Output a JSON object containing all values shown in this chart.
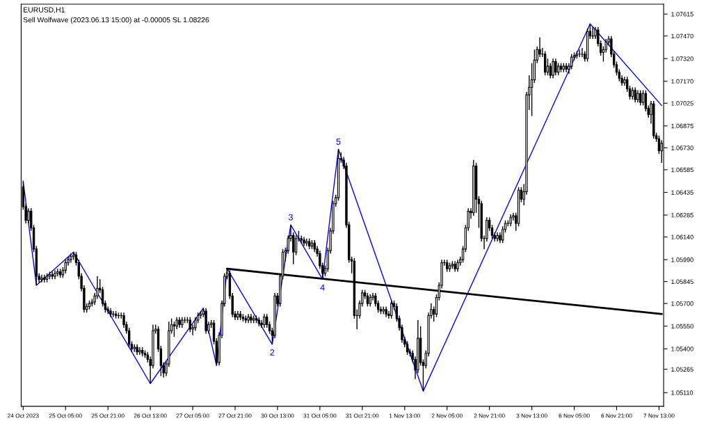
{
  "chart_data": {
    "type": "candlestick",
    "title": "EURUSD,H1",
    "subtitle": "Sell Wolfwave (2023.06.13 15:00) at -0.00005 SL 1.08226",
    "categories": [
      "24 Oct 2023",
      null,
      null,
      null,
      null,
      null,
      null,
      null,
      null,
      null,
      null,
      null,
      null,
      null,
      null,
      null,
      "25 Oct 05:00",
      null,
      null,
      null,
      null,
      null,
      null,
      null,
      null,
      null,
      null,
      null,
      null,
      null,
      null,
      null,
      "25 Oct 21:00",
      null,
      null,
      null,
      null,
      null,
      null,
      null,
      null,
      null,
      null,
      null,
      null,
      null,
      null,
      null,
      "26 Oct 13:00",
      null,
      null,
      null,
      null,
      null,
      null,
      null,
      null,
      null,
      null,
      null,
      null,
      null,
      null,
      null,
      "27 Oct 05:00",
      null,
      null,
      null,
      null,
      null,
      null,
      null,
      null,
      null,
      null,
      null,
      null,
      null,
      null,
      null,
      "27 Oct 21:00",
      null,
      null,
      null,
      null,
      null,
      null,
      null,
      null,
      null,
      null,
      null,
      null,
      null,
      null,
      null,
      "30 Oct 13:00",
      null,
      null,
      null,
      null,
      null,
      null,
      null,
      null,
      null,
      null,
      null,
      null,
      null,
      null,
      null,
      "31 Oct 05:00",
      null,
      null,
      null,
      null,
      null,
      null,
      null,
      null,
      null,
      null,
      null,
      null,
      null,
      null,
      null,
      "31 Oct 21:00",
      null,
      null,
      null,
      null,
      null,
      null,
      null,
      null,
      null,
      null,
      null,
      null,
      null,
      null,
      null,
      "1 Nov 13:00",
      null,
      null,
      null,
      null,
      null,
      null,
      null,
      null,
      null,
      null,
      null,
      null,
      null,
      null,
      null,
      "2 Nov 05:00",
      null,
      null,
      null,
      null,
      null,
      null,
      null,
      null,
      null,
      null,
      null,
      null,
      null,
      null,
      null,
      "2 Nov 21:00",
      null,
      null,
      null,
      null,
      null,
      null,
      null,
      null,
      null,
      null,
      null,
      null,
      null,
      null,
      null,
      "3 Nov 13:00",
      null,
      null,
      null,
      null,
      null,
      null,
      null,
      null,
      null,
      null,
      null,
      null,
      null,
      null,
      null,
      "6 Nov 05:00",
      null,
      null,
      null,
      null,
      null,
      null,
      null,
      null,
      null,
      null,
      null,
      null,
      null,
      null,
      null,
      "6 Nov 21:00",
      null,
      null,
      null,
      null,
      null,
      null,
      null,
      null,
      null,
      null,
      null,
      null,
      null,
      null,
      null,
      "7 Nov 13:00",
      null
    ],
    "ohlc": [
      [
        1.0647,
        1.0651,
        1.0632,
        1.0634
      ],
      [
        1.0634,
        1.0636,
        1.0623,
        1.0625
      ],
      [
        1.0625,
        1.0633,
        1.0623,
        1.0631
      ],
      [
        1.0631,
        1.0633,
        1.0618,
        1.062
      ],
      [
        1.062,
        1.0622,
        1.0604,
        1.0606
      ],
      [
        1.0606,
        1.0608,
        1.0582,
        1.0588
      ],
      [
        1.0588,
        1.059,
        1.0584,
        1.0586
      ],
      [
        1.0586,
        1.0589,
        1.0584,
        1.0587
      ],
      [
        1.0587,
        1.0589,
        1.0584,
        1.0586
      ],
      [
        1.0586,
        1.059,
        1.0584,
        1.0588
      ],
      [
        1.0588,
        1.0591,
        1.0586,
        1.0589
      ],
      [
        1.0589,
        1.0591,
        1.0586,
        1.0588
      ],
      [
        1.0588,
        1.0592,
        1.0586,
        1.059
      ],
      [
        1.059,
        1.0593,
        1.0588,
        1.0591
      ],
      [
        1.0591,
        1.0593,
        1.0587,
        1.0589
      ],
      [
        1.0589,
        1.0594,
        1.0587,
        1.0592
      ],
      [
        1.0592,
        1.0599,
        1.059,
        1.0597
      ],
      [
        1.0597,
        1.0601,
        1.0595,
        1.0599
      ],
      [
        1.0599,
        1.0603,
        1.0597,
        1.0601
      ],
      [
        1.0601,
        1.0604,
        1.0599,
        1.0602
      ],
      [
        1.0602,
        1.0604,
        1.0595,
        1.0597
      ],
      [
        1.0597,
        1.0599,
        1.0586,
        1.0588
      ],
      [
        1.0588,
        1.059,
        1.0578,
        1.058
      ],
      [
        1.058,
        1.0582,
        1.0564,
        1.0566
      ],
      [
        1.0566,
        1.057,
        1.0564,
        1.0568
      ],
      [
        1.0568,
        1.0572,
        1.0566,
        1.057
      ],
      [
        1.057,
        1.0573,
        1.0568,
        1.0571
      ],
      [
        1.0571,
        1.0577,
        1.0569,
        1.0575
      ],
      [
        1.0575,
        1.0588,
        1.0573,
        1.058
      ],
      [
        1.058,
        1.0586,
        1.0577,
        1.0579
      ],
      [
        1.0579,
        1.0581,
        1.0568,
        1.057
      ],
      [
        1.057,
        1.0572,
        1.0564,
        1.0566
      ],
      [
        1.0566,
        1.0568,
        1.0563,
        1.0565
      ],
      [
        1.0565,
        1.0567,
        1.0561,
        1.0563
      ],
      [
        1.0563,
        1.0565,
        1.0561,
        1.0563
      ],
      [
        1.0563,
        1.0565,
        1.056,
        1.0562
      ],
      [
        1.0562,
        1.0564,
        1.056,
        1.0562
      ],
      [
        1.0562,
        1.0564,
        1.056,
        1.0562
      ],
      [
        1.0562,
        1.0564,
        1.0554,
        1.0556
      ],
      [
        1.0556,
        1.0558,
        1.055,
        1.0552
      ],
      [
        1.0552,
        1.0554,
        1.0541,
        1.0543
      ],
      [
        1.0543,
        1.0545,
        1.0538,
        1.054
      ],
      [
        1.054,
        1.0543,
        1.0538,
        1.0541
      ],
      [
        1.0541,
        1.0543,
        1.0536,
        1.0538
      ],
      [
        1.0538,
        1.0541,
        1.0536,
        1.0539
      ],
      [
        1.0539,
        1.0541,
        1.0535,
        1.0537
      ],
      [
        1.0537,
        1.0539,
        1.0534,
        1.0536
      ],
      [
        1.0536,
        1.0538,
        1.0531,
        1.0533
      ],
      [
        1.0533,
        1.0535,
        1.0517,
        1.0529
      ],
      [
        1.0529,
        1.0556,
        1.0527,
        1.0552
      ],
      [
        1.0552,
        1.0556,
        1.055,
        1.0553
      ],
      [
        1.0553,
        1.0555,
        1.0538,
        1.054
      ],
      [
        1.054,
        1.0542,
        1.0522,
        1.0529
      ],
      [
        1.0529,
        1.0531,
        1.0521,
        1.0524
      ],
      [
        1.0524,
        1.0532,
        1.0522,
        1.053
      ],
      [
        1.053,
        1.0558,
        1.0528,
        1.0552
      ],
      [
        1.0552,
        1.056,
        1.055,
        1.0556
      ],
      [
        1.0556,
        1.0558,
        1.0548,
        1.0555
      ],
      [
        1.0555,
        1.0561,
        1.0553,
        1.0559
      ],
      [
        1.0559,
        1.0561,
        1.0554,
        1.0556
      ],
      [
        1.0556,
        1.0561,
        1.0554,
        1.0559
      ],
      [
        1.0559,
        1.0561,
        1.0557,
        1.0559
      ],
      [
        1.0559,
        1.0561,
        1.0557,
        1.0559
      ],
      [
        1.0559,
        1.0561,
        1.0551,
        1.0553
      ],
      [
        1.0553,
        1.0556,
        1.0549,
        1.0554
      ],
      [
        1.0554,
        1.0561,
        1.0552,
        1.0559
      ],
      [
        1.0559,
        1.0564,
        1.0557,
        1.0562
      ],
      [
        1.0562,
        1.0565,
        1.056,
        1.0563
      ],
      [
        1.0563,
        1.0567,
        1.0561,
        1.0565
      ],
      [
        1.0565,
        1.0567,
        1.055,
        1.0552
      ],
      [
        1.0552,
        1.0558,
        1.055,
        1.0556
      ],
      [
        1.0556,
        1.0559,
        1.0554,
        1.0557
      ],
      [
        1.0557,
        1.0559,
        1.0543,
        1.0545
      ],
      [
        1.0545,
        1.0547,
        1.0529,
        1.0531
      ],
      [
        1.0531,
        1.0551,
        1.0529,
        1.0549
      ],
      [
        1.0549,
        1.0572,
        1.0547,
        1.057
      ],
      [
        1.057,
        1.059,
        1.0568,
        1.0588
      ],
      [
        1.0588,
        1.0593,
        1.0586,
        1.059
      ],
      [
        1.059,
        1.0592,
        1.0573,
        1.0575
      ],
      [
        1.0575,
        1.0577,
        1.0561,
        1.0563
      ],
      [
        1.0563,
        1.0565,
        1.0559,
        1.0561
      ],
      [
        1.0561,
        1.0565,
        1.0559,
        1.0563
      ],
      [
        1.0563,
        1.0565,
        1.0559,
        1.0561
      ],
      [
        1.0561,
        1.0563,
        1.0558,
        1.056
      ],
      [
        1.056,
        1.0562,
        1.0557,
        1.0559
      ],
      [
        1.0559,
        1.0563,
        1.0557,
        1.0561
      ],
      [
        1.0561,
        1.0563,
        1.0557,
        1.0559
      ],
      [
        1.0559,
        1.0562,
        1.0557,
        1.056
      ],
      [
        1.056,
        1.0562,
        1.0557,
        1.0559
      ],
      [
        1.0559,
        1.0561,
        1.0555,
        1.0557
      ],
      [
        1.0557,
        1.0559,
        1.0554,
        1.0556
      ],
      [
        1.0556,
        1.0563,
        1.0554,
        1.0561
      ],
      [
        1.0561,
        1.0563,
        1.0554,
        1.0556
      ],
      [
        1.0556,
        1.0558,
        1.055,
        1.0552
      ],
      [
        1.0552,
        1.0554,
        1.0543,
        1.0549
      ],
      [
        1.0549,
        1.0577,
        1.0547,
        1.0575
      ],
      [
        1.0575,
        1.0577,
        1.0568,
        1.057
      ],
      [
        1.057,
        1.059,
        1.0568,
        1.0588
      ],
      [
        1.0588,
        1.0606,
        1.0586,
        1.0604
      ],
      [
        1.0604,
        1.0607,
        1.0598,
        1.0605
      ],
      [
        1.0605,
        1.0615,
        1.0603,
        1.0613
      ],
      [
        1.0613,
        1.0622,
        1.0611,
        1.0615
      ],
      [
        1.0615,
        1.0617,
        1.0596,
        1.0604
      ],
      [
        1.0604,
        1.0615,
        1.0602,
        1.0613
      ],
      [
        1.0613,
        1.0618,
        1.0611,
        1.0613
      ],
      [
        1.0613,
        1.0615,
        1.061,
        1.0612
      ],
      [
        1.0612,
        1.0614,
        1.0608,
        1.061
      ],
      [
        1.061,
        1.0613,
        1.0608,
        1.0611
      ],
      [
        1.0611,
        1.0613,
        1.0606,
        1.0608
      ],
      [
        1.0608,
        1.0612,
        1.0606,
        1.061
      ],
      [
        1.061,
        1.0612,
        1.0604,
        1.0606
      ],
      [
        1.0606,
        1.0608,
        1.0601,
        1.0603
      ],
      [
        1.0603,
        1.0605,
        1.0593,
        1.0595
      ],
      [
        1.0595,
        1.0597,
        1.0586,
        1.059
      ],
      [
        1.059,
        1.0595,
        1.0588,
        1.0593
      ],
      [
        1.0593,
        1.0607,
        1.0591,
        1.0605
      ],
      [
        1.0605,
        1.062,
        1.0603,
        1.0618
      ],
      [
        1.0618,
        1.0638,
        1.0616,
        1.0636
      ],
      [
        1.0636,
        1.0642,
        1.0634,
        1.064
      ],
      [
        1.064,
        1.0672,
        1.0638,
        1.0666
      ],
      [
        1.0666,
        1.067,
        1.0663,
        1.0665
      ],
      [
        1.0665,
        1.0667,
        1.0659,
        1.0661
      ],
      [
        1.0661,
        1.0663,
        1.062,
        1.0622
      ],
      [
        1.0622,
        1.0624,
        1.0597,
        1.0599
      ],
      [
        1.0599,
        1.0601,
        1.059,
        1.0598
      ],
      [
        1.0598,
        1.06,
        1.056,
        1.0562
      ],
      [
        1.0562,
        1.0566,
        1.0553,
        1.0562
      ],
      [
        1.0562,
        1.0572,
        1.056,
        1.057
      ],
      [
        1.057,
        1.0579,
        1.0568,
        1.0577
      ],
      [
        1.0577,
        1.0579,
        1.0573,
        1.0575
      ],
      [
        1.0575,
        1.0577,
        1.0568,
        1.057
      ],
      [
        1.057,
        1.0576,
        1.0568,
        1.0574
      ],
      [
        1.0574,
        1.0577,
        1.0572,
        1.0575
      ],
      [
        1.0575,
        1.0577,
        1.0568,
        1.057
      ],
      [
        1.057,
        1.0572,
        1.0564,
        1.0566
      ],
      [
        1.0566,
        1.0568,
        1.0563,
        1.0565
      ],
      [
        1.0565,
        1.0568,
        1.0563,
        1.0566
      ],
      [
        1.0566,
        1.0568,
        1.0561,
        1.0563
      ],
      [
        1.0563,
        1.0565,
        1.056,
        1.0562
      ],
      [
        1.0562,
        1.0572,
        1.056,
        1.057
      ],
      [
        1.057,
        1.0572,
        1.0566,
        1.0568
      ],
      [
        1.0568,
        1.057,
        1.0558,
        1.056
      ],
      [
        1.056,
        1.0562,
        1.0552,
        1.0554
      ],
      [
        1.0554,
        1.0556,
        1.0544,
        1.0546
      ],
      [
        1.0546,
        1.0548,
        1.0541,
        1.0543
      ],
      [
        1.0543,
        1.0545,
        1.0536,
        1.0538
      ],
      [
        1.0538,
        1.054,
        1.0535,
        1.0537
      ],
      [
        1.0537,
        1.0539,
        1.0531,
        1.0533
      ],
      [
        1.0533,
        1.0535,
        1.052,
        1.0526
      ],
      [
        1.0526,
        1.0559,
        1.0524,
        1.0547
      ],
      [
        1.0547,
        1.0555,
        1.0529,
        1.0531
      ],
      [
        1.0531,
        1.0533,
        1.0512,
        1.0529
      ],
      [
        1.0529,
        1.0539,
        1.0527,
        1.0537
      ],
      [
        1.0537,
        1.0564,
        1.0535,
        1.0562
      ],
      [
        1.0562,
        1.057,
        1.056,
        1.0566
      ],
      [
        1.0566,
        1.0568,
        1.0558,
        1.0563
      ],
      [
        1.0563,
        1.0576,
        1.0561,
        1.0574
      ],
      [
        1.0574,
        1.0584,
        1.0572,
        1.0582
      ],
      [
        1.0582,
        1.0599,
        1.058,
        1.0597
      ],
      [
        1.0597,
        1.0599,
        1.0595,
        1.0597
      ],
      [
        1.0597,
        1.0599,
        1.0591,
        1.0593
      ],
      [
        1.0593,
        1.0597,
        1.0591,
        1.0595
      ],
      [
        1.0595,
        1.0598,
        1.0593,
        1.0596
      ],
      [
        1.0596,
        1.0598,
        1.0591,
        1.0593
      ],
      [
        1.0593,
        1.0599,
        1.0591,
        1.0597
      ],
      [
        1.0597,
        1.0601,
        1.0595,
        1.0599
      ],
      [
        1.0599,
        1.0608,
        1.0597,
        1.0606
      ],
      [
        1.0606,
        1.0622,
        1.0604,
        1.062
      ],
      [
        1.062,
        1.0633,
        1.0618,
        1.0631
      ],
      [
        1.0631,
        1.0633,
        1.0626,
        1.063
      ],
      [
        1.063,
        1.0665,
        1.0628,
        1.0661
      ],
      [
        1.0661,
        1.0663,
        1.063,
        1.0639
      ],
      [
        1.0639,
        1.0641,
        1.062,
        1.0636
      ],
      [
        1.0636,
        1.0638,
        1.0611,
        1.0613
      ],
      [
        1.0613,
        1.0615,
        1.0606,
        1.0613
      ],
      [
        1.0613,
        1.0627,
        1.0611,
        1.0625
      ],
      [
        1.0625,
        1.0627,
        1.0618,
        1.062
      ],
      [
        1.062,
        1.0622,
        1.0613,
        1.0615
      ],
      [
        1.0615,
        1.0617,
        1.0611,
        1.0613
      ],
      [
        1.0613,
        1.0617,
        1.0611,
        1.0615
      ],
      [
        1.0615,
        1.0617,
        1.061,
        1.0612
      ],
      [
        1.0612,
        1.0621,
        1.061,
        1.0619
      ],
      [
        1.0619,
        1.0625,
        1.0617,
        1.0623
      ],
      [
        1.0623,
        1.0625,
        1.0621,
        1.0623
      ],
      [
        1.0623,
        1.0629,
        1.0621,
        1.0627
      ],
      [
        1.0627,
        1.063,
        1.0625,
        1.0628
      ],
      [
        1.0628,
        1.063,
        1.0618,
        1.0623
      ],
      [
        1.0623,
        1.0647,
        1.0621,
        1.0645
      ],
      [
        1.0645,
        1.0647,
        1.0637,
        1.0639
      ],
      [
        1.0639,
        1.0649,
        1.0635,
        1.0644
      ],
      [
        1.0644,
        1.071,
        1.0642,
        1.0708
      ],
      [
        1.0708,
        1.0721,
        1.0698,
        1.0713
      ],
      [
        1.0713,
        1.0729,
        1.0694,
        1.0718
      ],
      [
        1.0718,
        1.0738,
        1.0716,
        1.0731
      ],
      [
        1.0731,
        1.074,
        1.0729,
        1.0738
      ],
      [
        1.0738,
        1.0746,
        1.0733,
        1.0735
      ],
      [
        1.0735,
        1.0739,
        1.0733,
        1.0735
      ],
      [
        1.0735,
        1.0737,
        1.0721,
        1.0723
      ],
      [
        1.0723,
        1.0732,
        1.0721,
        1.0727
      ],
      [
        1.0727,
        1.0729,
        1.0719,
        1.0721
      ],
      [
        1.0721,
        1.0732,
        1.0719,
        1.073
      ],
      [
        1.073,
        1.0732,
        1.0721,
        1.0723
      ],
      [
        1.0723,
        1.0729,
        1.0721,
        1.0727
      ],
      [
        1.0727,
        1.0729,
        1.0723,
        1.0725
      ],
      [
        1.0725,
        1.0729,
        1.0723,
        1.0727
      ],
      [
        1.0727,
        1.0729,
        1.0723,
        1.0725
      ],
      [
        1.0725,
        1.0729,
        1.0722,
        1.0727
      ],
      [
        1.0727,
        1.0735,
        1.0725,
        1.0733
      ],
      [
        1.0733,
        1.0736,
        1.0731,
        1.0734
      ],
      [
        1.0734,
        1.0737,
        1.0732,
        1.0735
      ],
      [
        1.0735,
        1.0738,
        1.0733,
        1.0735
      ],
      [
        1.0735,
        1.0739,
        1.0733,
        1.0735
      ],
      [
        1.0735,
        1.0737,
        1.073,
        1.0732
      ],
      [
        1.0732,
        1.0752,
        1.073,
        1.075
      ],
      [
        1.075,
        1.0755,
        1.0745,
        1.0747
      ],
      [
        1.0747,
        1.0753,
        1.0745,
        1.0747
      ],
      [
        1.0747,
        1.0753,
        1.0745,
        1.0751
      ],
      [
        1.0751,
        1.0753,
        1.074,
        1.0742
      ],
      [
        1.0742,
        1.0744,
        1.0734,
        1.0736
      ],
      [
        1.0736,
        1.074,
        1.073,
        1.0738
      ],
      [
        1.0738,
        1.0745,
        1.0736,
        1.0743
      ],
      [
        1.0743,
        1.0747,
        1.0741,
        1.0745
      ],
      [
        1.0745,
        1.0747,
        1.0733,
        1.0735
      ],
      [
        1.0735,
        1.0737,
        1.0726,
        1.0728
      ],
      [
        1.0728,
        1.073,
        1.0721,
        1.0723
      ],
      [
        1.0723,
        1.0725,
        1.0717,
        1.0719
      ],
      [
        1.0719,
        1.0721,
        1.0714,
        1.0716
      ],
      [
        1.0716,
        1.072,
        1.0714,
        1.0718
      ],
      [
        1.0718,
        1.072,
        1.071,
        1.0712
      ],
      [
        1.0712,
        1.0714,
        1.0705,
        1.0707
      ],
      [
        1.0707,
        1.0713,
        1.0705,
        1.0711
      ],
      [
        1.0711,
        1.0713,
        1.0703,
        1.0705
      ],
      [
        1.0705,
        1.0711,
        1.0703,
        1.0709
      ],
      [
        1.0709,
        1.0711,
        1.0701,
        1.0703
      ],
      [
        1.0703,
        1.0711,
        1.0701,
        1.0709
      ],
      [
        1.0709,
        1.0711,
        1.0697,
        1.0699
      ],
      [
        1.0699,
        1.0701,
        1.0693,
        1.0695
      ],
      [
        1.0695,
        1.0704,
        1.0689,
        1.0702
      ],
      [
        1.0702,
        1.0704,
        1.0679,
        1.0681
      ],
      [
        1.0681,
        1.0683,
        1.0677,
        1.0679
      ],
      [
        1.0679,
        1.0681,
        1.0669,
        1.0671
      ],
      [
        1.0671,
        1.0678,
        1.0663,
        1.0676
      ]
    ],
    "series": [
      {
        "type": "line",
        "color": "#0000ff",
        "values": [
          1.0651,
          null,
          null,
          null,
          null,
          1.0582,
          null,
          null,
          null,
          null,
          null,
          null,
          null,
          null,
          null,
          null,
          null,
          null,
          null,
          1.0604,
          null,
          null,
          null,
          null,
          null,
          null,
          null,
          null,
          null,
          null,
          null,
          null,
          null,
          null,
          null,
          null,
          null,
          null,
          null,
          null,
          null,
          null,
          null,
          null,
          null,
          null,
          null,
          null,
          1.0517,
          null,
          null,
          null,
          null,
          null,
          null,
          null,
          null,
          null,
          null,
          null,
          null,
          null,
          null,
          null,
          null,
          null,
          null,
          null,
          1.0567,
          null,
          null,
          null,
          null,
          1.0529,
          null,
          null,
          null,
          1.0593,
          null,
          null,
          null,
          null,
          null,
          null,
          null,
          null,
          null,
          null,
          null,
          null,
          null,
          null,
          null,
          null,
          1.0543,
          null,
          null,
          null,
          null,
          null,
          null,
          1.0622,
          null,
          null,
          null,
          null,
          null,
          null,
          null,
          null,
          null,
          null,
          null,
          1.0586,
          null,
          null,
          null,
          null,
          null,
          1.0672,
          null,
          null,
          null,
          null,
          null,
          null,
          null,
          null,
          null,
          null,
          null,
          null,
          null,
          null,
          null,
          null,
          null,
          null,
          null,
          null,
          null,
          null,
          null,
          null,
          null,
          null,
          null,
          null,
          null,
          null,
          null,
          1.0512,
          null,
          null,
          null,
          null,
          null,
          null,
          null,
          null,
          null,
          null,
          null,
          null,
          null,
          null,
          null,
          null,
          null,
          null,
          null,
          null,
          null,
          null,
          null,
          null,
          null,
          null,
          null,
          null,
          null,
          null,
          null,
          null,
          null,
          null,
          null,
          null,
          null,
          null,
          null,
          null,
          null,
          null,
          null,
          null,
          null,
          null,
          null,
          null,
          null,
          null,
          null,
          null,
          null,
          null,
          null,
          null,
          null,
          null,
          null,
          null,
          null,
          null,
          1.0755,
          null,
          null,
          null,
          null,
          null,
          null,
          null,
          null,
          null,
          null,
          null,
          null,
          null,
          null,
          null,
          null,
          null,
          null,
          null,
          null,
          null,
          null,
          null,
          null,
          null,
          null,
          1.0701
        ]
      },
      {
        "type": "line",
        "color": "#000000",
        "values": [
          null,
          null,
          null,
          null,
          null,
          null,
          null,
          null,
          null,
          null,
          null,
          null,
          null,
          null,
          null,
          null,
          null,
          null,
          null,
          null,
          null,
          null,
          null,
          null,
          null,
          null,
          null,
          null,
          null,
          null,
          null,
          null,
          null,
          null,
          null,
          null,
          null,
          null,
          null,
          null,
          null,
          null,
          null,
          null,
          null,
          null,
          null,
          null,
          null,
          null,
          null,
          null,
          null,
          null,
          null,
          null,
          null,
          null,
          null,
          null,
          null,
          null,
          null,
          null,
          null,
          null,
          null,
          null,
          null,
          null,
          null,
          null,
          null,
          null,
          null,
          null,
          null,
          1.0593,
          null,
          null,
          null,
          null,
          null,
          null,
          null,
          null,
          null,
          null,
          null,
          null,
          null,
          null,
          null,
          null,
          null,
          null,
          null,
          null,
          null,
          null,
          null,
          null,
          null,
          null,
          null,
          null,
          null,
          null,
          null,
          null,
          null,
          null,
          null,
          null,
          null,
          null,
          null,
          null,
          null,
          null,
          null,
          null,
          null,
          null,
          null,
          null,
          null,
          null,
          null,
          null,
          null,
          null,
          null,
          null,
          null,
          null,
          null,
          null,
          null,
          null,
          null,
          null,
          null,
          null,
          null,
          null,
          null,
          null,
          null,
          null,
          null,
          null,
          null,
          null,
          null,
          null,
          null,
          null,
          null,
          null,
          null,
          null,
          null,
          null,
          null,
          null,
          null,
          null,
          null,
          null,
          null,
          null,
          null,
          null,
          null,
          null,
          null,
          null,
          null,
          null,
          null,
          null,
          null,
          null,
          null,
          null,
          null,
          null,
          null,
          null,
          null,
          null,
          null,
          null,
          null,
          null,
          null,
          null,
          null,
          null,
          null,
          null,
          null,
          null,
          null,
          null,
          null,
          null,
          null,
          null,
          null,
          null,
          null,
          null,
          null,
          null,
          null,
          null,
          null,
          null,
          null,
          null,
          null,
          null,
          null,
          null,
          null,
          null,
          null,
          null,
          null,
          null,
          null,
          null,
          null,
          null,
          null,
          null,
          null,
          null,
          null,
          1.0563
        ]
      }
    ],
    "annotations": [
      {
        "text": "2",
        "y": 1.0543
      },
      {
        "text": "3",
        "y": 1.0622
      },
      {
        "text": "4",
        "y": 1.0586
      },
      {
        "text": "5",
        "y": 1.0672
      }
    ],
    "ylim": [
      1.0502,
      1.0768
    ],
    "yticks": [
      {
        "value": 1.0511,
        "label": "1.05110"
      },
      1.05265,
      {
        "value": 1.054,
        "label": "1.05400"
      },
      {
        "value": 1.0555,
        "label": "1.05550"
      },
      {
        "value": 1.057,
        "label": "1.05700"
      },
      1.05845,
      {
        "value": 1.0599,
        "label": "1.05990"
      },
      {
        "value": 1.0614,
        "label": "1.06140"
      },
      1.06285,
      1.06435,
      1.06585,
      {
        "value": 1.0673,
        "label": "1.06730"
      },
      1.06875,
      1.07025,
      {
        "value": 1.0717,
        "label": "1.07170"
      },
      {
        "value": 1.0732,
        "label": "1.07320"
      },
      {
        "value": 1.0747,
        "label": "1.07470"
      },
      1.07615
    ],
    "grid": false
  }
}
